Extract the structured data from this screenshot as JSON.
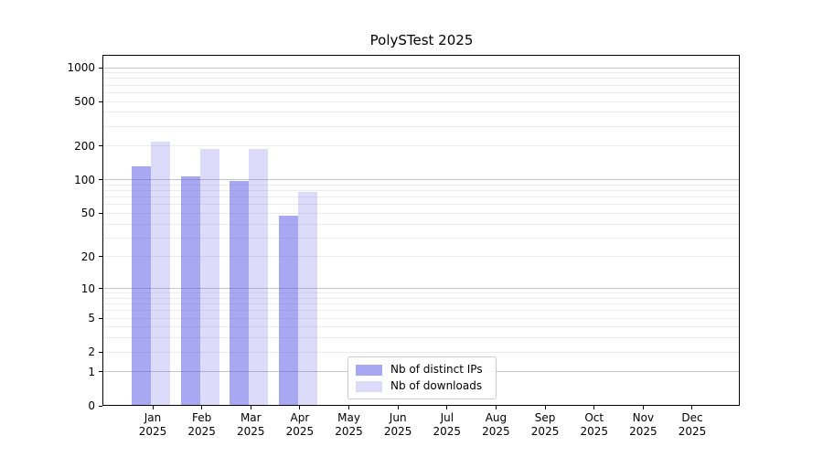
{
  "title": "PolySTest 2025",
  "chart_data": {
    "type": "bar",
    "title": "PolySTest 2025",
    "x_categories": [
      "Jan",
      "Feb",
      "Mar",
      "Apr",
      "May",
      "Jun",
      "Jul",
      "Aug",
      "Sep",
      "Oct",
      "Nov",
      "Dec"
    ],
    "x_year": "2025",
    "series": [
      {
        "name": "Nb of distinct IPs",
        "color": "rgba(82,82,229,0.5)",
        "values": [
          133,
          107,
          97,
          48,
          null,
          null,
          null,
          null,
          null,
          null,
          null,
          null
        ]
      },
      {
        "name": "Nb of downloads",
        "color": "rgba(82,82,229,0.2)",
        "values": [
          220,
          190,
          190,
          78,
          null,
          null,
          null,
          null,
          null,
          null,
          null,
          null
        ]
      }
    ],
    "y_axis": {
      "scale": "symlog(log1p)",
      "ticks": [
        0,
        1,
        2,
        5,
        10,
        20,
        50,
        100,
        200,
        500,
        1000
      ],
      "top_value": 1300
    },
    "grid": {
      "major_ticks": [
        1,
        10,
        100,
        1000
      ],
      "minor_ticks": [
        2,
        3,
        4,
        5,
        6,
        7,
        8,
        9,
        20,
        30,
        40,
        50,
        60,
        70,
        80,
        90,
        200,
        300,
        400,
        500,
        600,
        700,
        800,
        900
      ],
      "major_color": "#c6c6c6",
      "minor_color": "#ececec"
    },
    "legend": {
      "location": "bottom-center",
      "border_color": "#cccccc"
    },
    "frame_color": "#000000"
  }
}
